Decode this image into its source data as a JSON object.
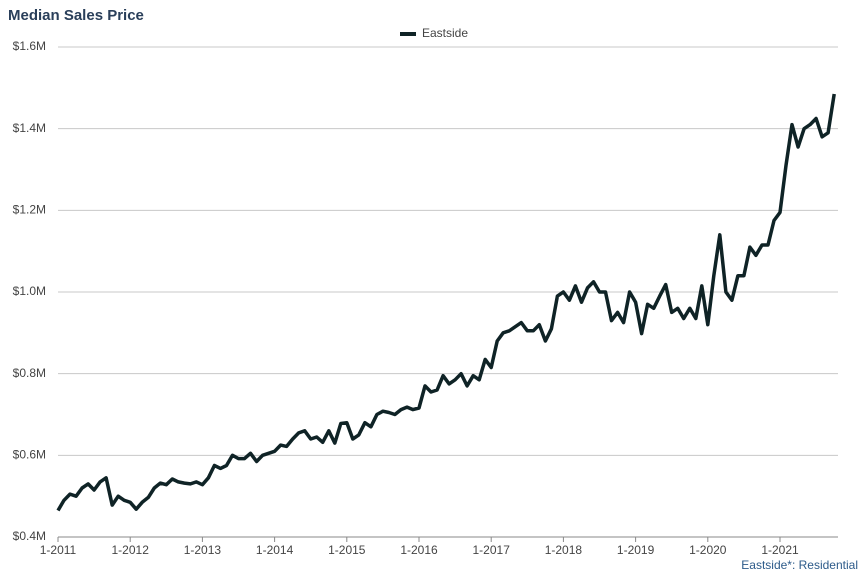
{
  "chart_data": {
    "type": "line",
    "title": "Median Sales Price",
    "footnote": "Eastside*: Residential",
    "categories": [
      "1-2011",
      null,
      null,
      null,
      null,
      null,
      null,
      null,
      null,
      null,
      null,
      null,
      "1-2012",
      null,
      null,
      null,
      null,
      null,
      null,
      null,
      null,
      null,
      null,
      null,
      "1-2013",
      null,
      null,
      null,
      null,
      null,
      null,
      null,
      null,
      null,
      null,
      null,
      "1-2014",
      null,
      null,
      null,
      null,
      null,
      null,
      null,
      null,
      null,
      null,
      null,
      "1-2015",
      null,
      null,
      null,
      null,
      null,
      null,
      null,
      null,
      null,
      null,
      null,
      "1-2016",
      null,
      null,
      null,
      null,
      null,
      null,
      null,
      null,
      null,
      null,
      null,
      "1-2017",
      null,
      null,
      null,
      null,
      null,
      null,
      null,
      null,
      null,
      null,
      null,
      "1-2018",
      null,
      null,
      null,
      null,
      null,
      null,
      null,
      null,
      null,
      null,
      null,
      "1-2019",
      null,
      null,
      null,
      null,
      null,
      null,
      null,
      null,
      null,
      null,
      null,
      "1-2020",
      null,
      null,
      null,
      null,
      null,
      null,
      null,
      null,
      null,
      null,
      null,
      "1-2021",
      null,
      null,
      null,
      null,
      null,
      null,
      null,
      null,
      null
    ],
    "series": [
      {
        "name": "Eastside",
        "color": "#0f2326",
        "values": [
          465000,
          490000,
          505000,
          500000,
          520000,
          530000,
          515000,
          535000,
          545000,
          478000,
          500000,
          490000,
          485000,
          468000,
          485000,
          497000,
          520000,
          532000,
          528000,
          542000,
          535000,
          532000,
          530000,
          535000,
          528000,
          545000,
          575000,
          568000,
          575000,
          600000,
          592000,
          592000,
          605000,
          585000,
          600000,
          605000,
          610000,
          625000,
          622000,
          640000,
          655000,
          660000,
          640000,
          645000,
          632000,
          660000,
          630000,
          678000,
          680000,
          640000,
          650000,
          680000,
          670000,
          700000,
          708000,
          705000,
          700000,
          712000,
          718000,
          712000,
          716000,
          770000,
          755000,
          760000,
          795000,
          775000,
          785000,
          800000,
          770000,
          795000,
          785000,
          835000,
          815000,
          880000,
          900000,
          905000,
          915000,
          925000,
          905000,
          905000,
          920000,
          880000,
          910000,
          990000,
          1000000,
          980000,
          1015000,
          975000,
          1010000,
          1025000,
          1000000,
          1000000,
          930000,
          950000,
          925000,
          1000000,
          975000,
          898000,
          970000,
          960000,
          990000,
          1018000,
          950000,
          960000,
          935000,
          960000,
          935000,
          1015000,
          920000,
          1040000,
          1140000,
          1000000,
          980000,
          1040000,
          1040000,
          1110000,
          1090000,
          1115000,
          1115000,
          1175000,
          1195000,
          1310000,
          1410000,
          1355000,
          1400000,
          1410000,
          1425000,
          1380000,
          1390000,
          1485000
        ]
      }
    ],
    "ylim": [
      400000,
      1600000
    ],
    "yticks": [
      {
        "value": 400000,
        "label": "$0.4M"
      },
      {
        "value": 600000,
        "label": "$0.6M"
      },
      {
        "value": 800000,
        "label": "$0.8M"
      },
      {
        "value": 1000000,
        "label": "$1.0M"
      },
      {
        "value": 1200000,
        "label": "$1.2M"
      },
      {
        "value": 1400000,
        "label": "$1.4M"
      },
      {
        "value": 1600000,
        "label": "$1.6M"
      }
    ],
    "grid": true,
    "legend": "top"
  }
}
